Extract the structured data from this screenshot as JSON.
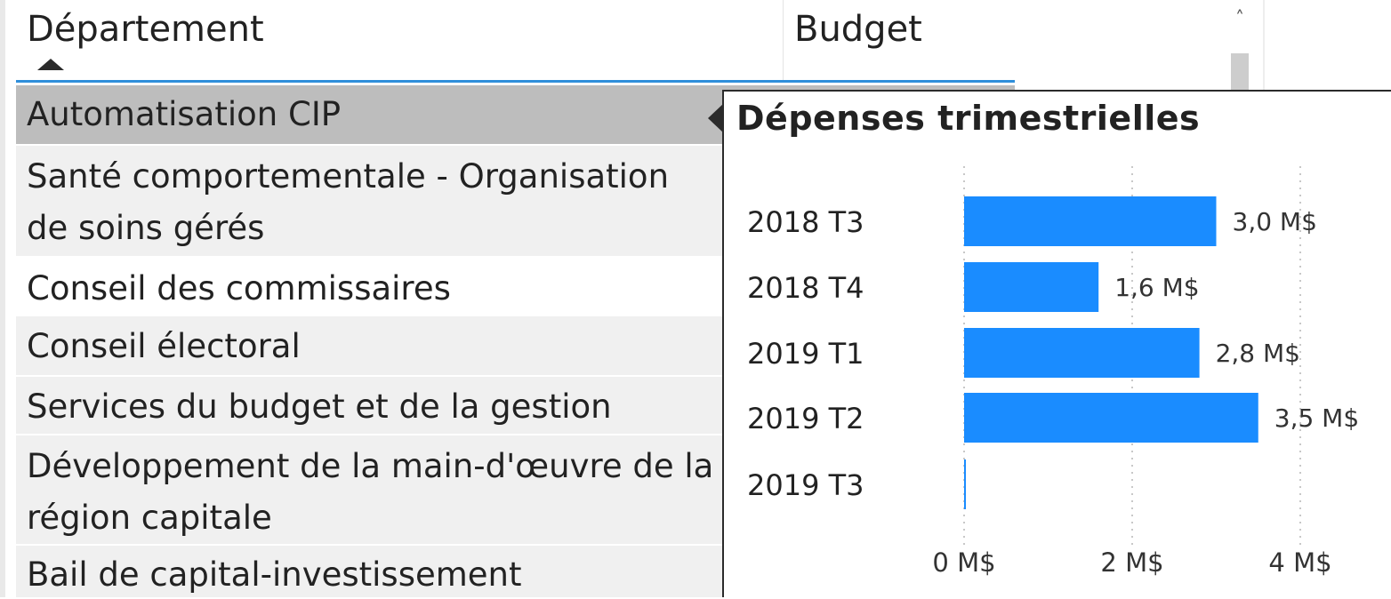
{
  "table": {
    "headers": {
      "department": "Département",
      "budget": "Budget"
    },
    "sort_icon": "sort-ascending-icon",
    "scroll_up_icon": "chevron-up-icon",
    "scroll_up_glyph": "˄",
    "rows": [
      {
        "label": "Automatisation CIP",
        "selected": true
      },
      {
        "label": "Santé comportementale - Organisation\nde soins gérés",
        "selected": false
      },
      {
        "label": "Conseil des commissaires",
        "selected": false
      },
      {
        "label": "Conseil électoral",
        "selected": false
      },
      {
        "label": "Services du budget et de la gestion",
        "selected": false
      },
      {
        "label": "Développement de la main-d'œuvre de la\nrégion capitale",
        "selected": false
      },
      {
        "label": "Bail de capital-investissement",
        "selected": false
      }
    ]
  },
  "tooltip": {
    "title": "Dépenses trimestrielles"
  },
  "chart_data": {
    "type": "bar",
    "orientation": "horizontal",
    "title": "Dépenses trimestrielles",
    "categories": [
      "2018 T3",
      "2018 T4",
      "2019 T1",
      "2019 T2",
      "2019 T3"
    ],
    "values": [
      3.0,
      1.6,
      2.8,
      3.5,
      0.01
    ],
    "data_labels": [
      "3,0 M$",
      "1,6 M$",
      "2,8 M$",
      "3,5 M$",
      ""
    ],
    "x_ticks": [
      0,
      2,
      4
    ],
    "x_tick_labels": [
      "0 M$",
      "2 M$",
      "4 M$"
    ],
    "xlim": [
      0,
      4
    ],
    "grid": true,
    "bar_color": "#1a8cff"
  },
  "colors": {
    "header_underline": "#2f8fdb",
    "selected_row": "#bdbdbd",
    "alt_row": "#f0f0f0"
  }
}
